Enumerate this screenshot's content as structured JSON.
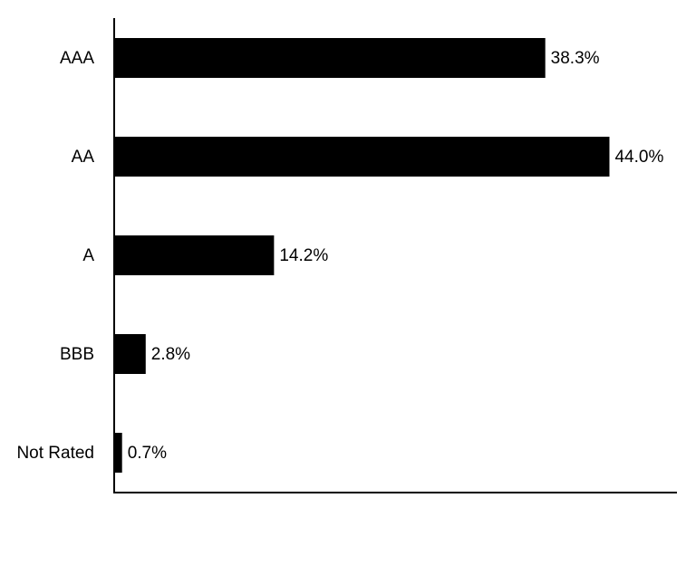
{
  "chart_data": {
    "type": "hbar",
    "categories": [
      "AAA",
      "AA",
      "A",
      "BBB",
      "Not Rated"
    ],
    "values": [
      38.3,
      44.0,
      14.2,
      2.8,
      0.7
    ],
    "value_labels": [
      "38.3%",
      "44.0%",
      "14.2%",
      "2.8%",
      "0.7%"
    ],
    "color": "#000000",
    "xlim": [
      0,
      50
    ]
  }
}
